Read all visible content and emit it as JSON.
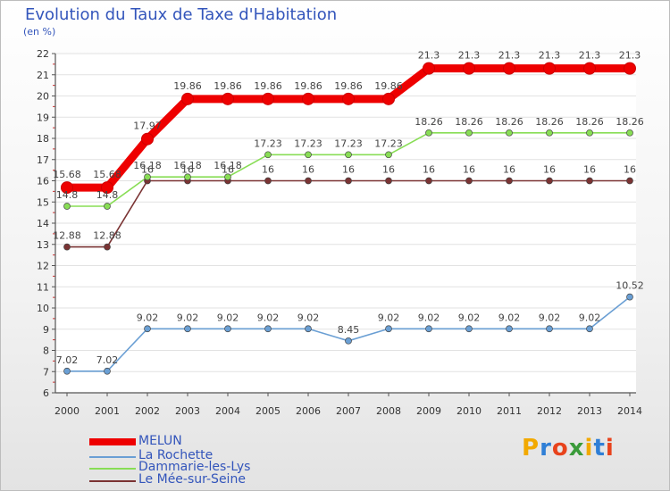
{
  "title": "Evolution du Taux de Taxe d'Habitation",
  "unit": "(en %)",
  "brand": {
    "logo_text": "Proxiti"
  },
  "chart_data": {
    "type": "line",
    "x": [
      "2000",
      "2001",
      "2002",
      "2003",
      "2004",
      "2005",
      "2006",
      "2007",
      "2008",
      "2009",
      "2010",
      "2011",
      "2012",
      "2013",
      "2014"
    ],
    "yticks": [
      "6",
      "7",
      "8",
      "9",
      "10",
      "11",
      "12",
      "13",
      "14",
      "15",
      "16",
      "17",
      "18",
      "19",
      "20",
      "21",
      "22"
    ],
    "ylim": [
      6,
      22
    ],
    "series": [
      {
        "name": "MELUN",
        "color": "#ee0000",
        "values": [
          15.68,
          15.68,
          17.97,
          19.86,
          19.86,
          19.86,
          19.86,
          19.86,
          19.86,
          21.3,
          21.3,
          21.3,
          21.3,
          21.3,
          21.3
        ],
        "labels": [
          "15.68",
          "15.68",
          "17.97",
          "19.86",
          "19.86",
          "19.86",
          "19.86",
          "19.86",
          "19.86",
          "21.3",
          "21.3",
          "21.3",
          "21.3",
          "21.3",
          "21.3"
        ]
      },
      {
        "name": "La Rochette",
        "color": "#6a9fd4",
        "values": [
          7.02,
          7.02,
          9.02,
          9.02,
          9.02,
          9.02,
          9.02,
          8.45,
          9.02,
          9.02,
          9.02,
          9.02,
          9.02,
          9.02,
          10.52
        ],
        "labels": [
          "7.02",
          "7.02",
          "9.02",
          "9.02",
          "9.02",
          "9.02",
          "9.02",
          "8.45",
          "9.02",
          "9.02",
          "9.02",
          "9.02",
          "9.02",
          "9.02",
          "10.52"
        ]
      },
      {
        "name": "Dammarie-les-Lys",
        "color": "#88dd55",
        "values": [
          14.8,
          14.8,
          16.18,
          16.18,
          16.18,
          17.23,
          17.23,
          17.23,
          17.23,
          18.26,
          18.26,
          18.26,
          18.26,
          18.26,
          18.26
        ],
        "labels": [
          "14.8",
          "14.8",
          "16.18",
          "16.18",
          "16.18",
          "17.23",
          "17.23",
          "17.23",
          "17.23",
          "18.26",
          "18.26",
          "18.26",
          "18.26",
          "18.26",
          "18.26"
        ]
      },
      {
        "name": "Le Mée-sur-Seine",
        "color": "#7a3333",
        "values": [
          12.88,
          12.88,
          16,
          16,
          16,
          16,
          16,
          16,
          16,
          16,
          16,
          16,
          16,
          16,
          16
        ],
        "labels": [
          "12.88",
          "12.88",
          "16",
          "16",
          "16",
          "16",
          "16",
          "16",
          "16",
          "16",
          "16",
          "16",
          "16",
          "16",
          "16"
        ]
      }
    ]
  }
}
